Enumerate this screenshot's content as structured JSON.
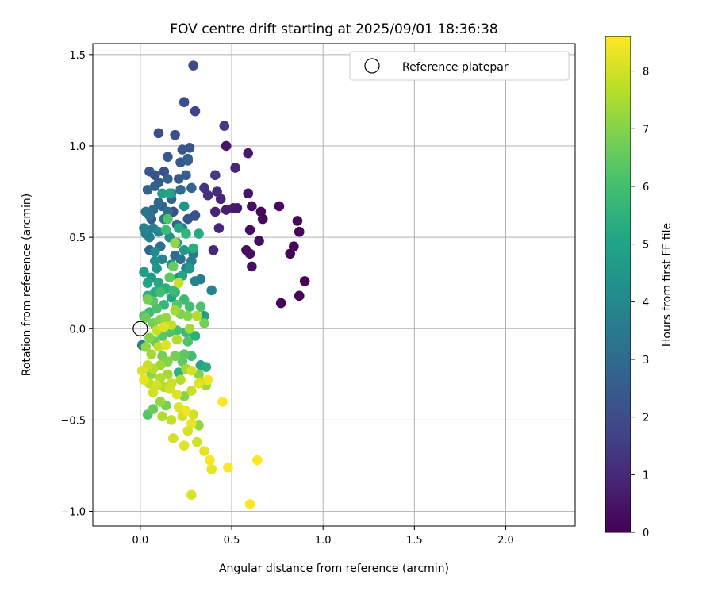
{
  "chart_data": {
    "type": "scatter",
    "title": "FOV centre drift starting at 2025/09/01 18:36:38",
    "xlabel": "Angular distance from reference (arcmin)",
    "ylabel": "Rotation from reference (arcmin)",
    "xlim": [
      -0.26,
      2.38
    ],
    "ylim": [
      -1.08,
      1.56
    ],
    "xticks": [
      0.0,
      0.5,
      1.0,
      1.5,
      2.0
    ],
    "xtick_labels": [
      "0.0",
      "0.5",
      "1.0",
      "1.5",
      "2.0"
    ],
    "yticks": [
      -1.0,
      -0.5,
      0.0,
      0.5,
      1.0,
      1.5
    ],
    "ytick_labels": [
      "−1.0",
      "−0.5",
      "0.0",
      "0.5",
      "1.0",
      "1.5"
    ],
    "grid": true,
    "legend": {
      "label": "Reference platepar",
      "position": "top-right"
    },
    "reference_point": {
      "x": 0.0,
      "y": 0.0
    },
    "colorbar": {
      "label": "Hours from first FF file",
      "min": 0,
      "max": 8.6,
      "ticks": [
        0,
        1,
        2,
        3,
        4,
        5,
        6,
        7,
        8
      ],
      "tick_labels": [
        "0",
        "1",
        "2",
        "3",
        "4",
        "5",
        "6",
        "7",
        "8"
      ],
      "colormap": "viridis"
    },
    "points": [
      [
        0.9,
        0.26,
        0.1
      ],
      [
        0.87,
        0.18,
        0.1
      ],
      [
        0.77,
        0.14,
        0.1
      ],
      [
        0.82,
        0.41,
        0.1
      ],
      [
        0.84,
        0.45,
        0.1
      ],
      [
        0.87,
        0.53,
        0.1
      ],
      [
        0.86,
        0.59,
        0.2
      ],
      [
        0.76,
        0.67,
        0.2
      ],
      [
        0.67,
        0.6,
        0.2
      ],
      [
        0.66,
        0.64,
        0.2
      ],
      [
        0.61,
        0.67,
        0.3
      ],
      [
        0.65,
        0.48,
        0.3
      ],
      [
        0.6,
        0.54,
        0.3
      ],
      [
        0.6,
        0.41,
        0.4
      ],
      [
        0.58,
        0.43,
        0.4
      ],
      [
        0.61,
        0.34,
        0.4
      ],
      [
        0.59,
        0.74,
        0.5
      ],
      [
        0.53,
        0.66,
        0.6
      ],
      [
        0.51,
        0.66,
        0.6
      ],
      [
        0.47,
        0.65,
        0.7
      ],
      [
        0.44,
        0.71,
        0.8
      ],
      [
        0.41,
        0.64,
        0.9
      ],
      [
        0.43,
        0.55,
        0.9
      ],
      [
        0.4,
        0.43,
        1.0
      ],
      [
        0.47,
        1.0,
        0.5
      ],
      [
        0.59,
        0.96,
        0.6
      ],
      [
        0.52,
        0.88,
        0.9
      ],
      [
        0.42,
        0.75,
        1.1
      ],
      [
        0.37,
        0.73,
        1.2
      ],
      [
        0.35,
        0.77,
        1.3
      ],
      [
        0.41,
        0.84,
        1.5
      ],
      [
        0.46,
        1.11,
        1.5
      ],
      [
        0.3,
        1.19,
        1.7
      ],
      [
        0.29,
        1.44,
        1.9
      ],
      [
        0.24,
        1.24,
        2.0
      ],
      [
        0.1,
        1.07,
        2.0
      ],
      [
        0.19,
        1.06,
        2.1
      ],
      [
        0.27,
        0.99,
        2.2
      ],
      [
        0.23,
        0.98,
        2.3
      ],
      [
        0.15,
        0.94,
        2.4
      ],
      [
        0.22,
        0.91,
        2.4
      ],
      [
        0.26,
        0.92,
        2.6
      ],
      [
        0.26,
        0.93,
        2.7
      ],
      [
        0.25,
        0.84,
        2.6
      ],
      [
        0.21,
        0.82,
        2.4
      ],
      [
        0.13,
        0.86,
        2.2
      ],
      [
        0.05,
        0.86,
        2.3
      ],
      [
        0.1,
        0.8,
        2.5
      ],
      [
        0.08,
        0.78,
        2.6
      ],
      [
        0.04,
        0.76,
        2.7
      ],
      [
        0.28,
        0.77,
        2.8
      ],
      [
        0.22,
        0.76,
        3.0
      ],
      [
        0.17,
        0.74,
        3.2
      ],
      [
        0.3,
        0.62,
        2.1
      ],
      [
        0.26,
        0.6,
        2.3
      ],
      [
        0.2,
        0.57,
        2.9
      ],
      [
        0.17,
        0.71,
        2.6
      ],
      [
        0.12,
        0.67,
        2.8
      ],
      [
        0.07,
        0.65,
        3.0
      ],
      [
        0.05,
        0.62,
        3.2
      ],
      [
        0.03,
        0.64,
        3.3
      ],
      [
        0.1,
        0.69,
        2.9
      ],
      [
        0.15,
        0.64,
        3.1
      ],
      [
        0.13,
        0.6,
        3.4
      ],
      [
        0.07,
        0.55,
        3.6
      ],
      [
        0.02,
        0.55,
        3.8
      ],
      [
        0.05,
        0.5,
        3.7
      ],
      [
        0.1,
        0.53,
        4.0
      ],
      [
        0.16,
        0.5,
        4.2
      ],
      [
        0.2,
        0.47,
        4.4
      ],
      [
        0.24,
        0.43,
        4.6
      ],
      [
        0.29,
        0.41,
        3.4
      ],
      [
        0.28,
        0.37,
        3.6
      ],
      [
        0.25,
        0.33,
        3.8
      ],
      [
        0.21,
        0.28,
        4.0
      ],
      [
        0.17,
        0.35,
        4.2
      ],
      [
        0.12,
        0.38,
        3.9
      ],
      [
        0.08,
        0.42,
        4.1
      ],
      [
        0.05,
        0.43,
        2.8
      ],
      [
        0.09,
        0.33,
        4.4
      ],
      [
        0.06,
        0.28,
        4.6
      ],
      [
        0.02,
        0.31,
        4.8
      ],
      [
        0.04,
        0.25,
        5.0
      ],
      [
        0.1,
        0.25,
        5.2
      ],
      [
        0.14,
        0.22,
        5.4
      ],
      [
        0.19,
        0.2,
        5.6
      ],
      [
        0.24,
        0.16,
        5.8
      ],
      [
        0.27,
        0.12,
        6.0
      ],
      [
        0.33,
        0.12,
        6.2
      ],
      [
        0.35,
        0.07,
        4.8
      ],
      [
        0.39,
        0.21,
        3.8
      ],
      [
        0.33,
        0.27,
        3.5
      ],
      [
        0.32,
        0.52,
        5.2
      ],
      [
        0.29,
        0.44,
        5.4
      ],
      [
        0.25,
        0.52,
        5.6
      ],
      [
        0.24,
        0.67,
        4.4
      ],
      [
        0.21,
        0.55,
        5.2
      ],
      [
        0.14,
        0.54,
        5.8
      ],
      [
        0.15,
        0.6,
        6.2
      ],
      [
        0.16,
        0.74,
        5.0
      ],
      [
        0.12,
        0.74,
        4.8
      ],
      [
        0.19,
        0.47,
        7.2
      ],
      [
        0.18,
        0.34,
        6.6
      ],
      [
        0.16,
        0.28,
        6.4
      ],
      [
        0.11,
        0.2,
        6.0
      ],
      [
        0.07,
        0.15,
        6.4
      ],
      [
        0.04,
        0.16,
        6.8
      ],
      [
        0.03,
        0.06,
        6.6
      ],
      [
        0.07,
        0.03,
        6.8
      ],
      [
        0.11,
        0.05,
        7.0
      ],
      [
        0.14,
        0.06,
        7.2
      ],
      [
        0.19,
        0.1,
        7.4
      ],
      [
        0.22,
        0.08,
        6.9
      ],
      [
        0.26,
        0.07,
        7.0
      ],
      [
        0.31,
        0.07,
        7.6
      ],
      [
        0.35,
        0.03,
        6.8
      ],
      [
        0.3,
        -0.04,
        5.4
      ],
      [
        0.25,
        -0.02,
        5.8
      ],
      [
        0.2,
        -0.01,
        6.0
      ],
      [
        0.16,
        -0.02,
        6.2
      ],
      [
        0.12,
        -0.04,
        6.4
      ],
      [
        0.08,
        -0.07,
        6.6
      ],
      [
        0.05,
        -0.05,
        7.0
      ],
      [
        0.01,
        -0.09,
        3.8
      ],
      [
        0.03,
        -0.1,
        7.2
      ],
      [
        0.06,
        -0.14,
        7.4
      ],
      [
        0.1,
        -0.1,
        7.8
      ],
      [
        0.14,
        -0.09,
        8.2
      ],
      [
        0.2,
        -0.06,
        7.6
      ],
      [
        0.26,
        -0.07,
        6.2
      ],
      [
        0.28,
        -0.15,
        6.0
      ],
      [
        0.24,
        -0.14,
        6.4
      ],
      [
        0.19,
        -0.15,
        6.8
      ],
      [
        0.15,
        -0.18,
        7.0
      ],
      [
        0.11,
        -0.2,
        7.3
      ],
      [
        0.07,
        -0.22,
        7.6
      ],
      [
        0.04,
        -0.2,
        7.9
      ],
      [
        0.01,
        -0.23,
        8.1
      ],
      [
        0.02,
        -0.28,
        8.3
      ],
      [
        0.05,
        -0.3,
        7.8
      ],
      [
        0.07,
        -0.35,
        8.0
      ],
      [
        0.11,
        -0.27,
        7.6
      ],
      [
        0.15,
        -0.25,
        7.4
      ],
      [
        0.17,
        -0.3,
        7.9
      ],
      [
        0.22,
        -0.28,
        7.6
      ],
      [
        0.25,
        -0.22,
        7.3
      ],
      [
        0.28,
        -0.23,
        8.0
      ],
      [
        0.33,
        -0.2,
        5.0
      ],
      [
        0.36,
        -0.21,
        5.3
      ],
      [
        0.32,
        -0.25,
        7.0
      ],
      [
        0.34,
        -0.29,
        7.6
      ],
      [
        0.36,
        -0.31,
        7.4
      ],
      [
        0.37,
        -0.28,
        8.4
      ],
      [
        0.32,
        -0.3,
        8.2
      ],
      [
        0.28,
        -0.34,
        7.9
      ],
      [
        0.24,
        -0.37,
        7.0
      ],
      [
        0.2,
        -0.36,
        8.2
      ],
      [
        0.16,
        -0.33,
        8.0
      ],
      [
        0.13,
        -0.32,
        7.6
      ],
      [
        0.11,
        -0.4,
        7.2
      ],
      [
        0.14,
        -0.42,
        6.8
      ],
      [
        0.21,
        -0.43,
        8.2
      ],
      [
        0.25,
        -0.45,
        8.4
      ],
      [
        0.29,
        -0.47,
        8.0
      ],
      [
        0.32,
        -0.53,
        7.2
      ],
      [
        0.28,
        -0.52,
        8.3
      ],
      [
        0.23,
        -0.48,
        8.0
      ],
      [
        0.17,
        -0.5,
        7.8
      ],
      [
        0.12,
        -0.48,
        7.6
      ],
      [
        0.07,
        -0.44,
        6.6
      ],
      [
        0.04,
        -0.47,
        6.3
      ],
      [
        0.45,
        -0.4,
        8.6
      ],
      [
        0.26,
        -0.56,
        8.1
      ],
      [
        0.18,
        -0.6,
        8.0
      ],
      [
        0.24,
        -0.64,
        8.2
      ],
      [
        0.31,
        -0.62,
        8.0
      ],
      [
        0.35,
        -0.67,
        8.3
      ],
      [
        0.38,
        -0.72,
        8.5
      ],
      [
        0.39,
        -0.77,
        8.3
      ],
      [
        0.48,
        -0.76,
        8.6
      ],
      [
        0.64,
        -0.72,
        8.6
      ],
      [
        0.28,
        -0.91,
        8.1
      ],
      [
        0.6,
        -0.96,
        8.6
      ],
      [
        0.09,
        -0.01,
        7.9
      ],
      [
        0.13,
        0.01,
        8.2
      ],
      [
        0.17,
        0.02,
        7.8
      ],
      [
        0.21,
        0.25,
        7.9
      ],
      [
        0.13,
        0.13,
        5.7
      ],
      [
        0.09,
        0.11,
        6.1
      ],
      [
        0.05,
        0.09,
        5.9
      ],
      [
        0.23,
        0.29,
        5.0
      ],
      [
        0.27,
        0.33,
        4.5
      ],
      [
        0.3,
        0.26,
        3.8
      ],
      [
        0.08,
        0.37,
        4.3
      ],
      [
        0.11,
        0.45,
        3.2
      ],
      [
        0.06,
        0.6,
        2.4
      ],
      [
        0.03,
        0.52,
        3.7
      ],
      [
        0.19,
        0.4,
        3.0
      ],
      [
        0.22,
        0.38,
        3.3
      ],
      [
        0.18,
        0.64,
        2.0
      ],
      [
        0.15,
        0.82,
        2.7
      ],
      [
        0.08,
        0.84,
        2.1
      ],
      [
        0.23,
        0.55,
        3.6
      ],
      [
        0.2,
        0.13,
        6.3
      ],
      [
        0.17,
        0.17,
        5.0
      ],
      [
        0.12,
        -0.15,
        6.8
      ],
      [
        0.06,
        -0.25,
        7.1
      ],
      [
        0.09,
        -0.31,
        8.0
      ],
      [
        0.21,
        -0.24,
        5.5
      ],
      [
        0.23,
        -0.18,
        6.5
      ],
      [
        0.27,
        0.0,
        7.4
      ],
      [
        0.02,
        0.07,
        6.2
      ],
      [
        0.04,
        0.18,
        5.5
      ],
      [
        0.08,
        0.2,
        5.3
      ],
      [
        0.18,
        0.21,
        5.8
      ]
    ]
  }
}
